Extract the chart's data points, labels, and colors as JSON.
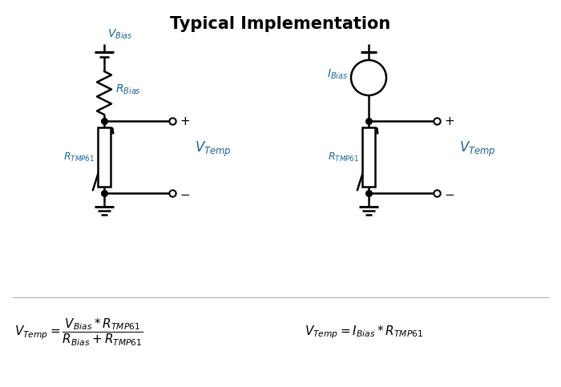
{
  "title": "Typical Implementation",
  "title_fontsize": 15,
  "title_fontweight": "bold",
  "background_color": "#ffffff",
  "line_color": "#000000",
  "label_color": "#1a6496",
  "fig_width": 7.0,
  "fig_height": 4.83,
  "dpi": 100
}
